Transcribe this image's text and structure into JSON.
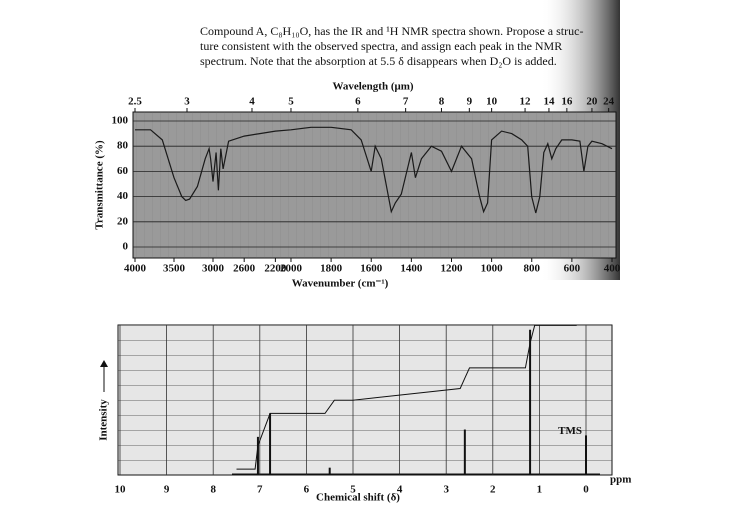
{
  "problem": {
    "lines": [
      "Compound A, C₈H₁₀O, has the IR and ¹H NMR spectra shown. Propose a struc-",
      "ture consistent with the observed spectra, and assign each peak in the NMR",
      "spectrum. Note that the absorption at 5.5 δ disappears when D₂O is added."
    ]
  },
  "chart_data": [
    {
      "type": "line",
      "top_axis_label": "Wavelength (μm)",
      "x_label": "Wavenumber (cm⁻¹)",
      "y_label": "Transmittance (%)",
      "x": [
        4000,
        3800,
        3650,
        3500,
        3400,
        3350,
        3300,
        3200,
        3100,
        3050,
        3030,
        3000,
        2960,
        2930,
        2900,
        2870,
        2800,
        2600,
        2400,
        2200,
        2000,
        1900,
        1800,
        1700,
        1650,
        1600,
        1580,
        1550,
        1500,
        1480,
        1450,
        1400,
        1380,
        1350,
        1300,
        1250,
        1200,
        1150,
        1100,
        1060,
        1040,
        1020,
        1000,
        950,
        900,
        850,
        820,
        800,
        780,
        760,
        740,
        720,
        700,
        680,
        650,
        600,
        560,
        540,
        520,
        500,
        450,
        400
      ],
      "values": [
        93,
        93,
        85,
        55,
        40,
        37,
        38,
        48,
        70,
        78,
        70,
        52,
        75,
        45,
        78,
        62,
        84,
        88,
        90,
        92,
        93,
        95,
        95,
        93,
        85,
        60,
        80,
        70,
        28,
        35,
        42,
        75,
        55,
        70,
        80,
        76,
        60,
        80,
        70,
        40,
        28,
        35,
        85,
        92,
        90,
        85,
        80,
        40,
        27,
        40,
        75,
        82,
        70,
        78,
        85,
        85,
        84,
        60,
        80,
        84,
        82,
        78
      ],
      "xlim": [
        4000,
        400
      ],
      "x_scale_break": 2000,
      "xticks": [
        4000,
        3500,
        3000,
        2600,
        2200,
        2000,
        1800,
        1600,
        1400,
        1200,
        1000,
        800,
        600,
        400
      ],
      "top_ticks": [
        2.5,
        3,
        4,
        5,
        6,
        7,
        8,
        9,
        10,
        12,
        14,
        16,
        20,
        24
      ],
      "ylim": [
        0,
        100
      ],
      "yticks": [
        0,
        20,
        40,
        60,
        80,
        100
      ],
      "color": "#1a1a1a",
      "grid": true
    },
    {
      "type": "stick",
      "x_label": "Chemical shift (δ)",
      "y_label": "Intensity",
      "x_unit": "ppm",
      "annotation": "TMS",
      "x": [
        7.04,
        6.78,
        5.5,
        2.6,
        1.2,
        0
      ],
      "values": [
        26,
        42,
        5,
        31,
        99,
        27
      ],
      "integral": {
        "x": [
          7.5,
          7.1,
          7.04,
          6.78,
          6.0,
          5.6,
          5.4,
          5.0,
          2.7,
          2.6,
          2.5,
          1.3,
          1.2,
          1.1,
          0.2
        ],
        "values": [
          4,
          4,
          20,
          42,
          42,
          42,
          51,
          51,
          59,
          66,
          73,
          73,
          90,
          102,
          102
        ]
      },
      "xlim": [
        10,
        0
      ],
      "xticks": [
        10,
        9,
        8,
        7,
        6,
        5,
        4,
        3,
        2,
        1,
        0
      ],
      "ylim": [
        0,
        105
      ],
      "color": "#111111",
      "grid": true
    }
  ]
}
